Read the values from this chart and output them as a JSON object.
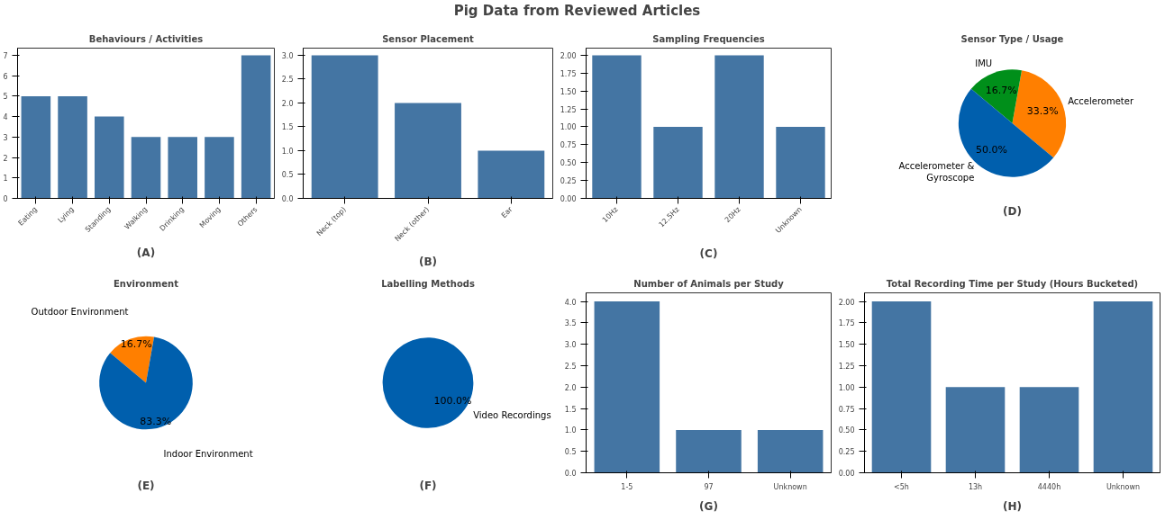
{
  "chart_data": [
    {
      "type": "other",
      "title": "Pig Data from Reviewed Articles"
    },
    {
      "type": "bar",
      "title": "Behaviours / Activities",
      "categories": [
        "Eating",
        "Lying",
        "Standing",
        "Walking",
        "Drinking",
        "Moving",
        "Others"
      ],
      "values": [
        5,
        5,
        4,
        3,
        3,
        3,
        7
      ],
      "color": "#4475a3",
      "ylim": [
        0,
        7.35
      ],
      "yticks": [
        0,
        1,
        2,
        3,
        4,
        5,
        6,
        7
      ],
      "annotations": [
        "(A)"
      ]
    },
    {
      "type": "bar",
      "title": "Sensor Placement",
      "categories": [
        "Neck (top)",
        "Neck (other)",
        "Ear"
      ],
      "values": [
        3,
        2,
        1
      ],
      "color": "#4475a3",
      "ylim": [
        0,
        3.15
      ],
      "yticks": [
        {
          "value": 0,
          "label": "0.0"
        },
        {
          "value": 0.5,
          "label": "0.5"
        },
        {
          "value": 1,
          "label": "1.0"
        },
        {
          "value": 1.5,
          "label": "1.5"
        },
        {
          "value": 2,
          "label": "2.0"
        },
        {
          "value": 2.5,
          "label": "2.5"
        },
        {
          "value": 3,
          "label": "3.0"
        }
      ],
      "annotations": [
        "(B)"
      ]
    },
    {
      "type": "bar",
      "title": "Sampling Frequencies",
      "categories": [
        "10Hz",
        "12.5Hz",
        "20Hz",
        "Unknown"
      ],
      "values": [
        2,
        1,
        2,
        1
      ],
      "color": "#4475a3",
      "ylim": [
        0,
        2.1
      ],
      "yticks": [
        {
          "value": 0,
          "label": "0.00"
        },
        {
          "value": 0.25,
          "label": "0.25"
        },
        {
          "value": 0.5,
          "label": "0.50"
        },
        {
          "value": 0.75,
          "label": "0.75"
        },
        {
          "value": 1,
          "label": "1.00"
        },
        {
          "value": 1.25,
          "label": "1.25"
        },
        {
          "value": 1.5,
          "label": "1.50"
        },
        {
          "value": 1.75,
          "label": "1.75"
        },
        {
          "value": 2,
          "label": "2.00"
        }
      ],
      "annotations": [
        "(C)"
      ]
    },
    {
      "type": "pie",
      "title": "Sensor Type / Usage",
      "categories": [
        "Accelerometer",
        "IMU",
        "Accelerometer &\nGyroscope"
      ],
      "values": [
        33.3,
        16.7,
        50.0
      ],
      "colors": [
        "#ff7f00",
        "#008f1a",
        "#005fad"
      ],
      "value_labels": [
        "33.3%",
        "16.7%",
        "50.0%"
      ],
      "annotations": [
        "(D)"
      ]
    },
    {
      "type": "pie",
      "title": "Environment",
      "categories": [
        "Outdoor Environment",
        "Indoor Environment"
      ],
      "values": [
        16.7,
        83.3
      ],
      "colors": [
        "#ff7f00",
        "#005fad"
      ],
      "value_labels": [
        "16.7%",
        "83.3%"
      ],
      "annotations": [
        "(E)"
      ]
    },
    {
      "type": "pie",
      "title": "Labelling Methods",
      "categories": [
        "Video Recordings"
      ],
      "values": [
        100.0
      ],
      "colors": [
        "#005fad"
      ],
      "value_labels": [
        "100.0%"
      ],
      "annotations": [
        "(F)"
      ]
    },
    {
      "type": "bar",
      "title": "Number of Animals per Study",
      "categories": [
        "1-5",
        "97",
        "Unknown"
      ],
      "values": [
        4,
        1,
        1
      ],
      "color": "#4475a3",
      "ylim": [
        0,
        4.2
      ],
      "yticks": [
        {
          "value": 0,
          "label": "0.0"
        },
        {
          "value": 0.5,
          "label": "0.5"
        },
        {
          "value": 1,
          "label": "1.0"
        },
        {
          "value": 1.5,
          "label": "1.5"
        },
        {
          "value": 2,
          "label": "2.0"
        },
        {
          "value": 2.5,
          "label": "2.5"
        },
        {
          "value": 3,
          "label": "3.0"
        },
        {
          "value": 3.5,
          "label": "3.5"
        },
        {
          "value": 4,
          "label": "4.0"
        }
      ],
      "annotations": [
        "(G)"
      ]
    },
    {
      "type": "bar",
      "title": "Total Recording Time per Study (Hours Bucketed)",
      "categories": [
        "<5h",
        "13h",
        "4440h",
        "Unknown"
      ],
      "values": [
        2,
        1,
        1,
        2
      ],
      "color": "#4475a3",
      "ylim": [
        0,
        2.1
      ],
      "yticks": [
        {
          "value": 0,
          "label": "0.00"
        },
        {
          "value": 0.25,
          "label": "0.25"
        },
        {
          "value": 0.5,
          "label": "0.50"
        },
        {
          "value": 0.75,
          "label": "0.75"
        },
        {
          "value": 1,
          "label": "1.00"
        },
        {
          "value": 1.25,
          "label": "1.25"
        },
        {
          "value": 1.5,
          "label": "1.50"
        },
        {
          "value": 1.75,
          "label": "1.75"
        },
        {
          "value": 2,
          "label": "2.00"
        }
      ],
      "annotations": [
        "(H)"
      ]
    }
  ]
}
